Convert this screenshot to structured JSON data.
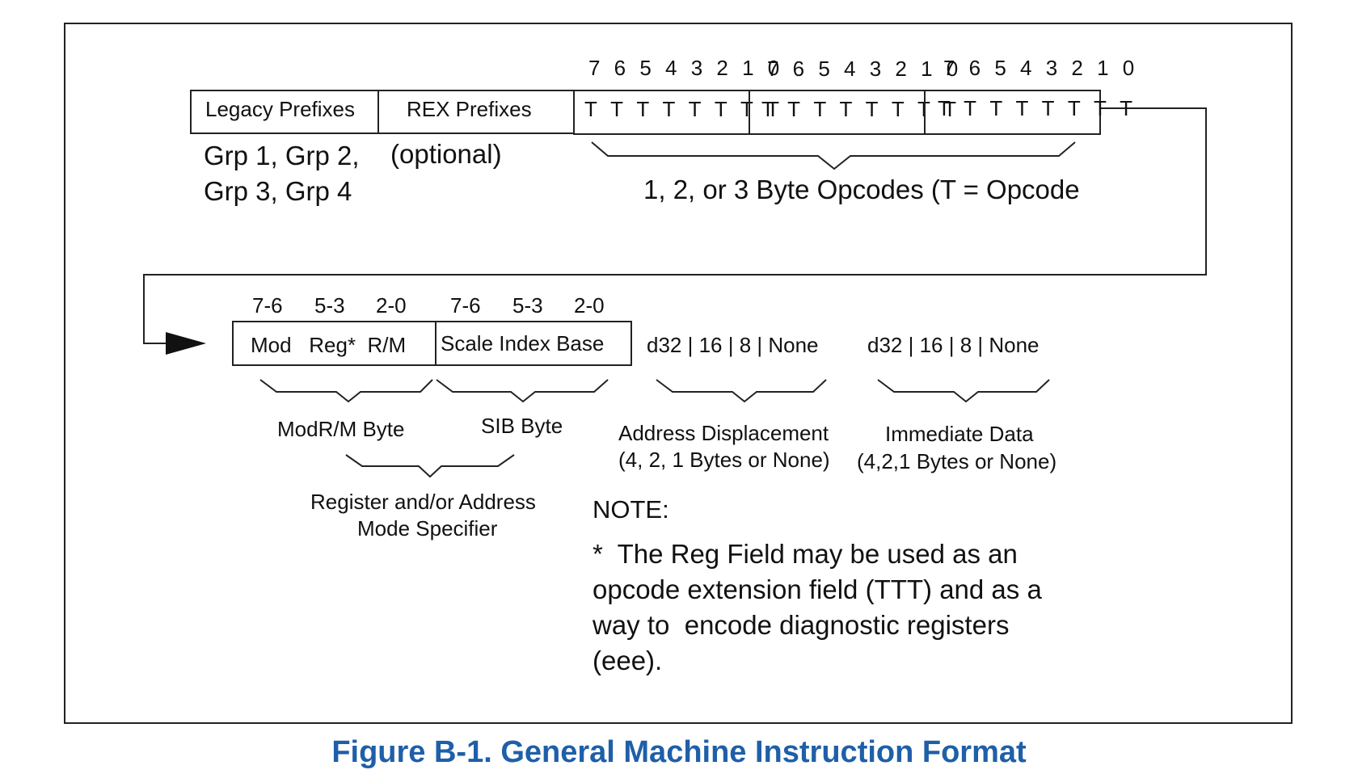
{
  "top_row": {
    "bit_headers": [
      "7 6 5 4 3 2 1 0",
      "7 6 5 4 3 2 1 0",
      "7 6 5 4 3 2 1 0"
    ],
    "legacy_label": "Legacy Prefixes",
    "rex_label": "REX Prefixes",
    "opcode_bytes": [
      "T T T T T T T T",
      "T T T T T T T T",
      "T T T T T T T T"
    ],
    "legacy_groups_line1": "Grp 1, Grp 2,",
    "legacy_groups_line2": "Grp 3, Grp 4",
    "rex_note": "(optional)",
    "opcodes_label": "1, 2, or 3 Byte Opcodes (T = Opcode"
  },
  "bottom_row": {
    "modrm_bits": [
      "7-6",
      "5-3",
      "2-0"
    ],
    "sib_bits": [
      "7-6",
      "5-3",
      "2-0"
    ],
    "modrm_fields": "Mod   Reg*  R/M",
    "sib_fields": "Scale Index Base",
    "displacement_sizes": "d32 | 16 | 8 | None",
    "immediate_sizes": "d32 | 16 | 8 | None",
    "modrm_label": "ModR/M Byte",
    "sib_label": "SIB Byte",
    "displacement_label_1": "Address Displacement",
    "displacement_label_2": "(4, 2, 1 Bytes or None)",
    "immediate_label_1": "Immediate Data",
    "immediate_label_2": "(4,2,1 Bytes or None)",
    "specifier_label_1": "Register and/or Address",
    "specifier_label_2": "Mode Specifier"
  },
  "note": {
    "heading": "NOTE:",
    "line1": "*  The Reg Field may be used as an",
    "line2": "opcode extension field (TTT) and as a",
    "line3": "way to  encode diagnostic registers",
    "line4": "(eee)."
  },
  "caption": "Figure B-1.  General Machine Instruction Format"
}
